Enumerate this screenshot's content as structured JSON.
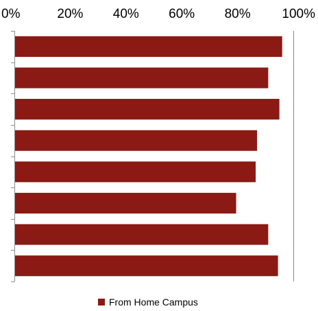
{
  "chart_data": {
    "type": "bar",
    "orientation": "horizontal",
    "x_ticks": [
      "0%",
      "20%",
      "40%",
      "60%",
      "80%",
      "100%"
    ],
    "xlim": [
      0,
      100
    ],
    "x_axis_position": "top",
    "grid": false,
    "series": [
      {
        "name": "From Home Campus",
        "color": "#8b1a14",
        "values": [
          96,
          91,
          95,
          87,
          86.5,
          79.5,
          91,
          94.5
        ]
      }
    ],
    "legend": {
      "position": "bottom",
      "entries": [
        "From Home Campus"
      ]
    }
  }
}
